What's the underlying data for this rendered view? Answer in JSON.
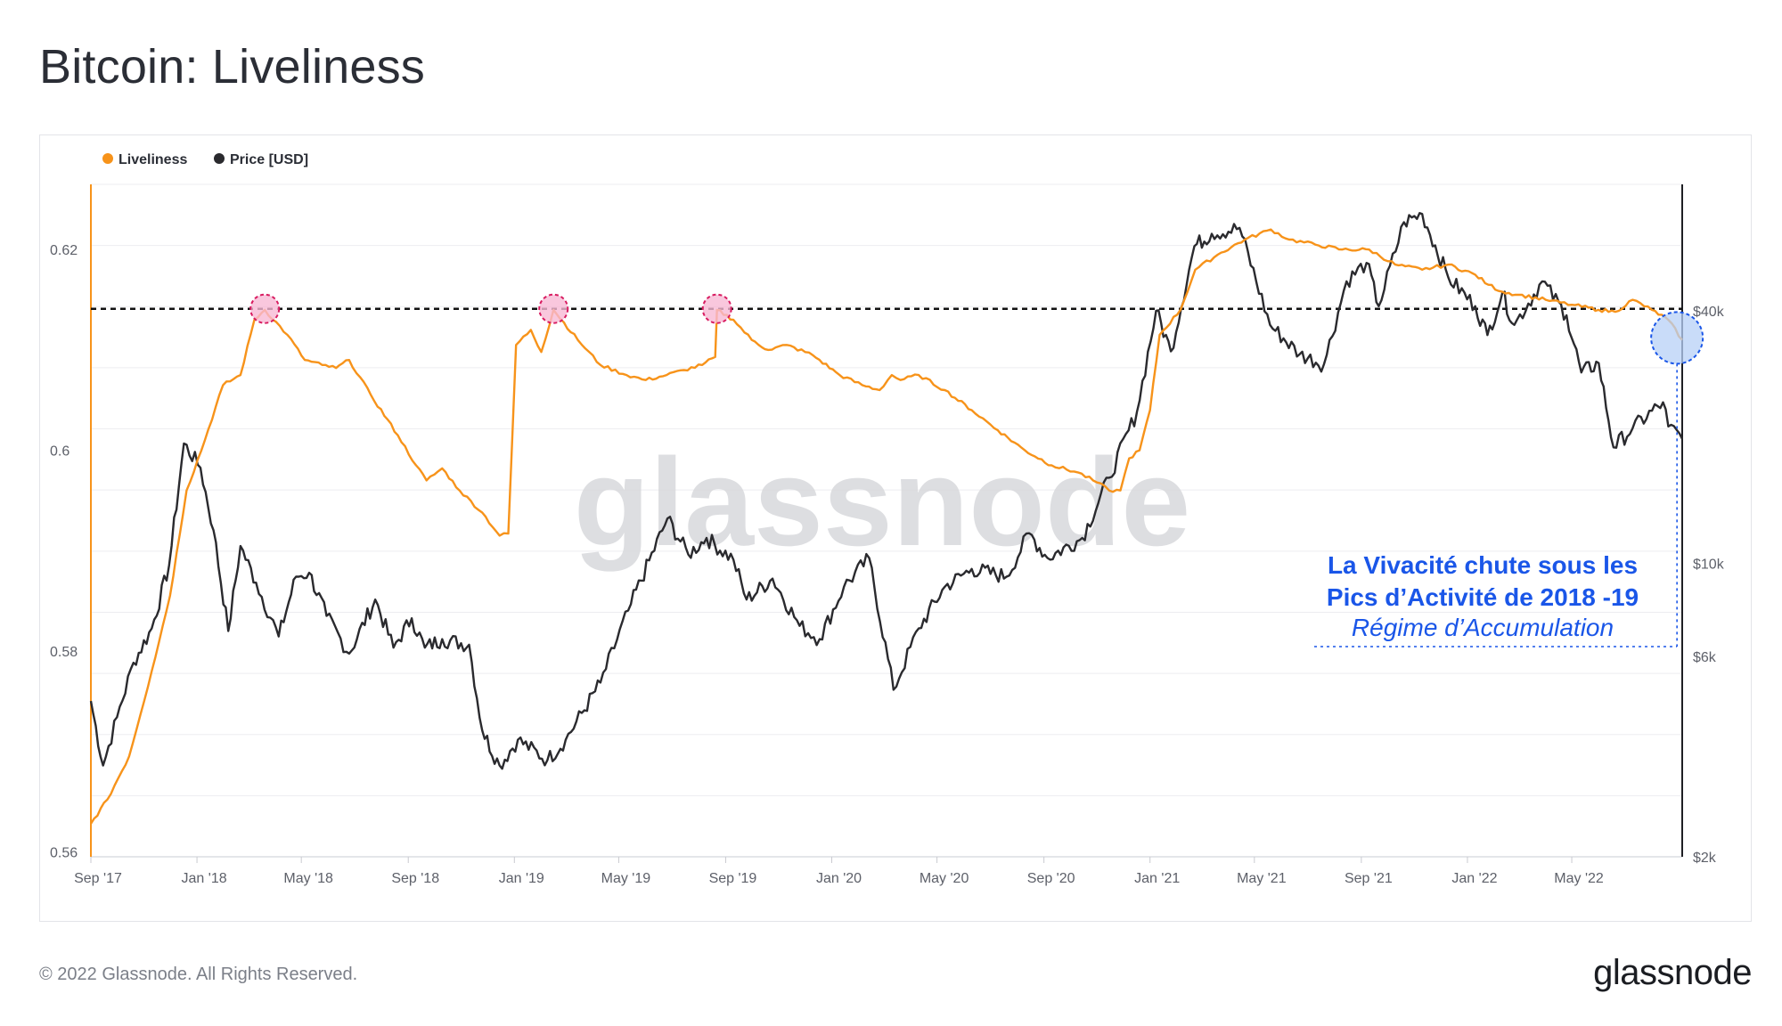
{
  "page": {
    "title": "Bitcoin: Liveliness",
    "copyright": "© 2022 Glassnode. All Rights Reserved.",
    "logo": "glassnode",
    "watermark": "glassnode"
  },
  "annotation": {
    "line1": "La Vivacité chute sous les",
    "line2": "Pics d’Activité de 2018 -19",
    "line3": "Régime d’Accumulation",
    "color": "#1a56e8"
  },
  "chart_data": {
    "type": "line",
    "title": "Bitcoin: Liveliness",
    "legend_position": "top-left",
    "grid": true,
    "x_ticks": [
      "Sep '17",
      "Jan '18",
      "May '18",
      "Sep '18",
      "Jan '19",
      "May '19",
      "Sep '19",
      "Jan '20",
      "May '20",
      "Sep '20",
      "Jan '21",
      "May '21",
      "Sep '21",
      "Jan '22",
      "May '22"
    ],
    "x_range": [
      "2017-09-01",
      "2022-09-05"
    ],
    "y_left": {
      "label": "",
      "ticks": [
        0.56,
        0.58,
        0.6,
        0.62
      ],
      "range": [
        0.5595,
        0.6265
      ]
    },
    "y_right": {
      "label": "",
      "scale": "log",
      "ticks": [
        2000,
        6000,
        10000,
        40000
      ],
      "tick_labels": [
        "$2k",
        "$6k",
        "$10k",
        "$40k"
      ],
      "range": [
        2000,
        80000
      ]
    },
    "reference_line": {
      "axis": "left",
      "value": 0.6141,
      "style": "dashed"
    },
    "series": [
      {
        "name": "Liveliness",
        "color": "#f7931a",
        "axis": "left",
        "points": [
          [
            "2017-09-01",
            0.5628
          ],
          [
            "2017-09-20",
            0.5652
          ],
          [
            "2017-10-15",
            0.5695
          ],
          [
            "2017-11-10",
            0.578
          ],
          [
            "2017-12-01",
            0.5855
          ],
          [
            "2017-12-20",
            0.596
          ],
          [
            "2018-01-10",
            0.601
          ],
          [
            "2018-01-31",
            0.6065
          ],
          [
            "2018-02-20",
            0.6075
          ],
          [
            "2018-03-08",
            0.613
          ],
          [
            "2018-03-20",
            0.614
          ],
          [
            "2018-04-15",
            0.6115
          ],
          [
            "2018-05-05",
            0.609
          ],
          [
            "2018-05-25",
            0.6085
          ],
          [
            "2018-06-10",
            0.6082
          ],
          [
            "2018-06-25",
            0.609
          ],
          [
            "2018-07-20",
            0.6055
          ],
          [
            "2018-08-20",
            0.6015
          ],
          [
            "2018-09-10",
            0.5985
          ],
          [
            "2018-09-22",
            0.597
          ],
          [
            "2018-10-10",
            0.5982
          ],
          [
            "2018-10-30",
            0.596
          ],
          [
            "2018-11-25",
            0.5938
          ],
          [
            "2018-12-15",
            0.5915
          ],
          [
            "2018-12-25",
            0.5917
          ],
          [
            "2019-01-03",
            0.6105
          ],
          [
            "2019-01-20",
            0.612
          ],
          [
            "2019-02-01",
            0.6098
          ],
          [
            "2019-02-15",
            0.614
          ],
          [
            "2019-03-15",
            0.611
          ],
          [
            "2019-04-10",
            0.6085
          ],
          [
            "2019-05-10",
            0.6075
          ],
          [
            "2019-06-01",
            0.607
          ],
          [
            "2019-06-25",
            0.6075
          ],
          [
            "2019-07-15",
            0.608
          ],
          [
            "2019-08-05",
            0.6085
          ],
          [
            "2019-08-20",
            0.6093
          ],
          [
            "2019-08-22",
            0.614
          ],
          [
            "2019-09-10",
            0.613
          ],
          [
            "2019-10-01",
            0.611
          ],
          [
            "2019-10-20",
            0.61
          ],
          [
            "2019-11-10",
            0.6105
          ],
          [
            "2019-12-10",
            0.6095
          ],
          [
            "2020-01-10",
            0.6075
          ],
          [
            "2020-02-05",
            0.6065
          ],
          [
            "2020-02-25",
            0.606
          ],
          [
            "2020-03-10",
            0.6075
          ],
          [
            "2020-03-20",
            0.607
          ],
          [
            "2020-04-10",
            0.6075
          ],
          [
            "2020-05-10",
            0.606
          ],
          [
            "2020-06-10",
            0.604
          ],
          [
            "2020-07-10",
            0.602
          ],
          [
            "2020-08-10",
            0.6
          ],
          [
            "2020-09-10",
            0.5985
          ],
          [
            "2020-10-10",
            0.5978
          ],
          [
            "2020-11-01",
            0.5968
          ],
          [
            "2020-11-15",
            0.596
          ],
          [
            "2020-11-28",
            0.596
          ],
          [
            "2020-12-08",
            0.5992
          ],
          [
            "2020-12-20",
            0.6
          ],
          [
            "2021-01-01",
            0.604
          ],
          [
            "2021-01-12",
            0.6115
          ],
          [
            "2021-02-05",
            0.614
          ],
          [
            "2021-02-22",
            0.618
          ],
          [
            "2021-03-20",
            0.6195
          ],
          [
            "2021-04-20",
            0.621
          ],
          [
            "2021-05-20",
            0.622
          ],
          [
            "2021-06-10",
            0.621
          ],
          [
            "2021-07-10",
            0.6205
          ],
          [
            "2021-08-10",
            0.62
          ],
          [
            "2021-09-10",
            0.62
          ],
          [
            "2021-10-10",
            0.6185
          ],
          [
            "2021-11-10",
            0.618
          ],
          [
            "2021-12-10",
            0.6185
          ],
          [
            "2022-01-10",
            0.6175
          ],
          [
            "2022-01-25",
            0.6165
          ],
          [
            "2022-02-10",
            0.6158
          ],
          [
            "2022-03-01",
            0.6155
          ],
          [
            "2022-04-01",
            0.615
          ],
          [
            "2022-05-01",
            0.6145
          ],
          [
            "2022-06-01",
            0.614
          ],
          [
            "2022-06-20",
            0.6138
          ],
          [
            "2022-07-10",
            0.615
          ],
          [
            "2022-08-01",
            0.614
          ],
          [
            "2022-08-20",
            0.613
          ],
          [
            "2022-09-05",
            0.611
          ]
        ]
      },
      {
        "name": "Price [USD]",
        "color": "#2a2a2e",
        "axis": "right",
        "points": [
          [
            "2017-09-01",
            4700
          ],
          [
            "2017-09-15",
            3300
          ],
          [
            "2017-10-01",
            4300
          ],
          [
            "2017-10-20",
            5800
          ],
          [
            "2017-11-10",
            7000
          ],
          [
            "2017-11-30",
            9900
          ],
          [
            "2017-12-17",
            19300
          ],
          [
            "2018-01-05",
            16900
          ],
          [
            "2018-01-20",
            12000
          ],
          [
            "2018-02-06",
            6900
          ],
          [
            "2018-02-20",
            11000
          ],
          [
            "2018-03-10",
            9000
          ],
          [
            "2018-04-05",
            6700
          ],
          [
            "2018-04-25",
            9300
          ],
          [
            "2018-05-10",
            9500
          ],
          [
            "2018-05-30",
            7500
          ],
          [
            "2018-06-25",
            6100
          ],
          [
            "2018-07-25",
            8200
          ],
          [
            "2018-08-15",
            6300
          ],
          [
            "2018-09-05",
            7400
          ],
          [
            "2018-09-20",
            6300
          ],
          [
            "2018-10-10",
            6600
          ],
          [
            "2018-11-10",
            6400
          ],
          [
            "2018-11-25",
            4000
          ],
          [
            "2018-12-15",
            3300
          ],
          [
            "2019-01-05",
            3800
          ],
          [
            "2019-02-08",
            3400
          ],
          [
            "2019-03-01",
            3800
          ],
          [
            "2019-04-10",
            5200
          ],
          [
            "2019-05-15",
            8000
          ],
          [
            "2019-06-26",
            12800
          ],
          [
            "2019-07-20",
            10500
          ],
          [
            "2019-08-10",
            11500
          ],
          [
            "2019-09-10",
            10200
          ],
          [
            "2019-09-25",
            8200
          ],
          [
            "2019-10-25",
            9200
          ],
          [
            "2019-11-25",
            7100
          ],
          [
            "2019-12-18",
            6600
          ],
          [
            "2020-01-15",
            8800
          ],
          [
            "2020-02-13",
            10300
          ],
          [
            "2020-03-12",
            5000
          ],
          [
            "2020-04-10",
            7000
          ],
          [
            "2020-05-10",
            8800
          ],
          [
            "2020-06-10",
            9700
          ],
          [
            "2020-07-20",
            9300
          ],
          [
            "2020-08-15",
            11800
          ],
          [
            "2020-09-05",
            10300
          ],
          [
            "2020-10-15",
            11500
          ],
          [
            "2020-11-15",
            16000
          ],
          [
            "2020-12-17",
            23000
          ],
          [
            "2021-01-08",
            40000
          ],
          [
            "2021-01-25",
            32000
          ],
          [
            "2021-02-21",
            57000
          ],
          [
            "2021-03-13",
            61000
          ],
          [
            "2021-04-14",
            63000
          ],
          [
            "2021-05-19",
            37000
          ],
          [
            "2021-06-22",
            31500
          ],
          [
            "2021-07-20",
            29800
          ],
          [
            "2021-08-15",
            47000
          ],
          [
            "2021-09-07",
            52000
          ],
          [
            "2021-09-21",
            41000
          ],
          [
            "2021-10-20",
            65000
          ],
          [
            "2021-11-10",
            68000
          ],
          [
            "2021-12-10",
            48000
          ],
          [
            "2022-01-10",
            41000
          ],
          [
            "2022-01-24",
            35000
          ],
          [
            "2022-02-10",
            44000
          ],
          [
            "2022-02-24",
            37000
          ],
          [
            "2022-03-28",
            47000
          ],
          [
            "2022-04-25",
            39000
          ],
          [
            "2022-05-12",
            28500
          ],
          [
            "2022-06-01",
            30000
          ],
          [
            "2022-06-18",
            18900
          ],
          [
            "2022-07-10",
            21000
          ],
          [
            "2022-08-14",
            24200
          ],
          [
            "2022-08-20",
            21200
          ],
          [
            "2022-09-05",
            19800
          ]
        ]
      }
    ],
    "highlights": [
      {
        "date": "2018-03-20",
        "value": 0.6141,
        "type": "peak"
      },
      {
        "date": "2019-02-15",
        "value": 0.6141,
        "type": "peak"
      },
      {
        "date": "2019-08-22",
        "value": 0.6141,
        "type": "peak"
      },
      {
        "date": "2022-08-30",
        "value": 0.6112,
        "type": "current"
      }
    ]
  }
}
